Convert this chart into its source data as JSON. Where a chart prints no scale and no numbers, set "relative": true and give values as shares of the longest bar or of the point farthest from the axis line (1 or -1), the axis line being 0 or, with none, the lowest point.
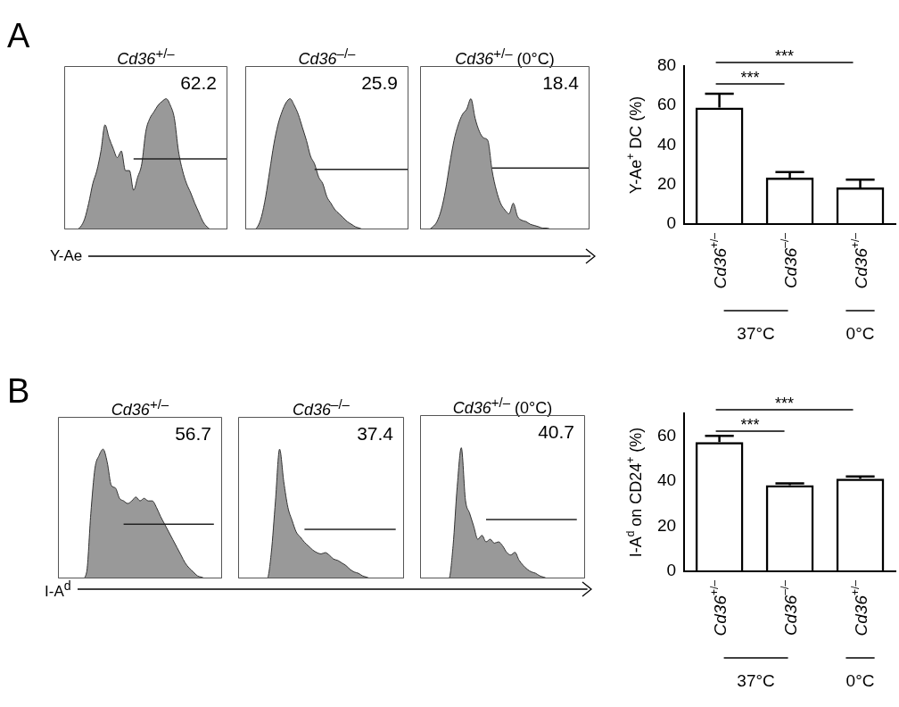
{
  "chart_data": [
    {
      "type": "area",
      "relative": true,
      "title": "Cd36$^{+/–}$",
      "xlabel": "Y-Ae",
      "annotations": [
        "62.2",
        "A"
      ],
      "categories": [
        null,
        null,
        null,
        null,
        null,
        null,
        null,
        null,
        null,
        null,
        null,
        null,
        null,
        null,
        null,
        null,
        null,
        null,
        null,
        null,
        null,
        null,
        null,
        null,
        null,
        null,
        null,
        null,
        null,
        null,
        null,
        null,
        null,
        null,
        null,
        null,
        null,
        null,
        null,
        null,
        null
      ],
      "series": [
        {
          "color": "#999999",
          "values": [
            0,
            0,
            0,
            0,
            0.02,
            0.08,
            0.2,
            0.35,
            0.45,
            0.6,
            0.8,
            0.7,
            0.62,
            0.55,
            0.6,
            0.45,
            0.45,
            0.3,
            0.4,
            0.5,
            0.75,
            0.85,
            0.9,
            0.95,
            0.98,
            1,
            0.95,
            0.85,
            0.6,
            0.45,
            0.35,
            0.28,
            0.2,
            0.13,
            0.06,
            0.02,
            0,
            0,
            0,
            0,
            0
          ]
        },
        {
          "type": "line",
          "color": "#222222",
          "values": [
            null,
            null,
            null,
            null,
            null,
            null,
            null,
            null,
            null,
            null,
            null,
            null,
            null,
            null,
            null,
            null,
            null,
            0.54,
            0.54,
            0.54,
            0.54,
            0.54,
            0.54,
            0.54,
            0.54,
            0.54,
            0.54,
            0.54,
            0.54,
            0.54,
            0.54,
            0.54,
            0.54,
            0.54,
            0.54,
            0.54,
            0.54,
            0.54,
            0.54,
            0.54,
            0.54
          ]
        }
      ]
    },
    {
      "type": "area",
      "relative": true,
      "title": "Cd36$^{–/–}$",
      "annotations": [
        "25.9"
      ],
      "categories": [
        null,
        null,
        null,
        null,
        null,
        null,
        null,
        null,
        null,
        null,
        null,
        null,
        null,
        null,
        null,
        null,
        null,
        null,
        null,
        null,
        null,
        null,
        null,
        null,
        null,
        null,
        null,
        null,
        null,
        null,
        null,
        null,
        null,
        null,
        null,
        null,
        null,
        null,
        null,
        null,
        null
      ],
      "series": [
        {
          "color": "#999999",
          "values": [
            0,
            0,
            0,
            0.02,
            0.1,
            0.25,
            0.45,
            0.65,
            0.8,
            0.9,
            0.97,
            1,
            0.95,
            0.88,
            0.78,
            0.68,
            0.56,
            0.5,
            0.4,
            0.35,
            0.25,
            0.2,
            0.15,
            0.12,
            0.09,
            0.06,
            0.04,
            0.02,
            0.01,
            0,
            0,
            0,
            0,
            0,
            0,
            0,
            0,
            0,
            0,
            0,
            0
          ]
        },
        {
          "type": "line",
          "color": "#222222",
          "values": [
            null,
            null,
            null,
            null,
            null,
            null,
            null,
            null,
            null,
            null,
            null,
            null,
            null,
            null,
            null,
            null,
            null,
            0.46,
            0.46,
            0.46,
            0.46,
            0.46,
            0.46,
            0.46,
            0.46,
            0.46,
            0.46,
            0.46,
            0.46,
            0.46,
            0.46,
            0.46,
            0.46,
            0.46,
            0.46,
            0.46,
            0.46,
            0.46,
            0.46,
            0.46,
            0.46
          ]
        }
      ]
    },
    {
      "type": "area",
      "relative": true,
      "title": "Cd36$^{+/–}$ (0°C)",
      "annotations": [
        "18.4"
      ],
      "categories": [
        null,
        null,
        null,
        null,
        null,
        null,
        null,
        null,
        null,
        null,
        null,
        null,
        null,
        null,
        null,
        null,
        null,
        null,
        null,
        null,
        null,
        null,
        null,
        null,
        null,
        null,
        null,
        null,
        null,
        null,
        null,
        null,
        null,
        null,
        null,
        null,
        null,
        null,
        null,
        null,
        null
      ],
      "series": [
        {
          "color": "#999999",
          "values": [
            0,
            0,
            0,
            0.02,
            0.06,
            0.15,
            0.3,
            0.5,
            0.68,
            0.8,
            0.88,
            0.92,
            1,
            0.85,
            0.75,
            0.7,
            0.68,
            0.45,
            0.3,
            0.2,
            0.15,
            0.12,
            0.2,
            0.1,
            0.07,
            0.06,
            0.04,
            0.03,
            0.02,
            0.01,
            0.01,
            0,
            0,
            0,
            0,
            0,
            0,
            0,
            0,
            0,
            0
          ]
        },
        {
          "type": "line",
          "color": "#222222",
          "values": [
            null,
            null,
            null,
            null,
            null,
            null,
            null,
            null,
            null,
            null,
            null,
            null,
            null,
            null,
            null,
            null,
            null,
            0.47,
            0.47,
            0.47,
            0.47,
            0.47,
            0.47,
            0.47,
            0.47,
            0.47,
            0.47,
            0.47,
            0.47,
            0.47,
            0.47,
            0.47,
            0.47,
            0.47,
            0.47,
            0.47,
            0.47,
            0.47,
            0.47,
            0.47,
            0.47
          ]
        }
      ]
    },
    {
      "type": "bar",
      "ylabel": "Y-Ae$^{+}$ DC (%)",
      "categories": [
        "Cd36$^{+/–}$",
        "Cd36$^{–/–}$",
        "Cd36$^{+/–}$"
      ],
      "values": [
        59,
        23.5,
        18.5
      ],
      "errors": [
        7,
        2.8,
        4
      ],
      "color": "#000000",
      "ylim": [
        0,
        80
      ],
      "yticks": [
        0,
        20,
        40,
        60,
        80
      ],
      "annotations": [
        "***",
        "***",
        "37°C",
        "0°C"
      ]
    },
    {
      "type": "area",
      "relative": true,
      "title": "Cd36$^{+/–}$",
      "xlabel": "I-A$^{d}$",
      "annotations": [
        "56.7",
        "B"
      ],
      "categories": [
        null,
        null,
        null,
        null,
        null,
        null,
        null,
        null,
        null,
        null,
        null,
        null,
        null,
        null,
        null,
        null,
        null,
        null,
        null,
        null,
        null,
        null,
        null,
        null,
        null,
        null,
        null,
        null,
        null,
        null,
        null,
        null,
        null,
        null,
        null,
        null,
        null,
        null,
        null,
        null,
        null
      ],
      "series": [
        {
          "color": "#999999",
          "values": [
            0,
            0,
            0,
            0,
            0,
            0,
            0,
            0.05,
            0.5,
            0.85,
            0.95,
            1,
            0.9,
            0.72,
            0.7,
            0.62,
            0.6,
            0.58,
            0.6,
            0.63,
            0.6,
            0.62,
            0.6,
            0.6,
            0.55,
            0.48,
            0.42,
            0.36,
            0.3,
            0.24,
            0.18,
            0.12,
            0.08,
            0.05,
            0.02,
            0.01,
            0,
            0,
            0,
            0,
            0
          ]
        },
        {
          "type": "line",
          "color": "#222222",
          "values": [
            null,
            null,
            null,
            null,
            null,
            null,
            null,
            null,
            null,
            null,
            null,
            null,
            null,
            null,
            null,
            null,
            0.42,
            0.42,
            0.42,
            0.42,
            0.42,
            0.42,
            0.42,
            0.42,
            0.42,
            0.42,
            0.42,
            0.42,
            0.42,
            0.42,
            0.42,
            0.42,
            0.42,
            0.42,
            0.42,
            0.42,
            0.42,
            0.42,
            0.42,
            null,
            null
          ]
        }
      ]
    },
    {
      "type": "area",
      "relative": true,
      "title": "Cd36$^{–/–}$",
      "annotations": [
        "37.4"
      ],
      "categories": [
        null,
        null,
        null,
        null,
        null,
        null,
        null,
        null,
        null,
        null,
        null,
        null,
        null,
        null,
        null,
        null,
        null,
        null,
        null,
        null,
        null,
        null,
        null,
        null,
        null,
        null,
        null,
        null,
        null,
        null,
        null,
        null,
        null,
        null,
        null,
        null,
        null,
        null,
        null,
        null,
        null
      ],
      "series": [
        {
          "color": "#999999",
          "values": [
            0,
            0,
            0,
            0,
            0,
            0,
            0,
            0,
            0.2,
            0.6,
            1,
            0.75,
            0.55,
            0.45,
            0.36,
            0.32,
            0.28,
            0.25,
            0.22,
            0.2,
            0.19,
            0.2,
            0.18,
            0.15,
            0.14,
            0.12,
            0.1,
            0.07,
            0.05,
            0.04,
            0.02,
            0.01,
            0,
            0,
            0,
            0,
            0,
            0,
            0,
            0,
            0
          ]
        },
        {
          "type": "line",
          "color": "#222222",
          "values": [
            null,
            null,
            null,
            null,
            null,
            null,
            null,
            null,
            null,
            null,
            null,
            null,
            null,
            null,
            null,
            null,
            0.38,
            0.38,
            0.38,
            0.38,
            0.38,
            0.38,
            0.38,
            0.38,
            0.38,
            0.38,
            0.38,
            0.38,
            0.38,
            0.38,
            0.38,
            0.38,
            0.38,
            0.38,
            0.38,
            0.38,
            0.38,
            0.38,
            0.38,
            null,
            null
          ]
        }
      ]
    },
    {
      "type": "area",
      "relative": true,
      "title": "Cd36$^{+/–}$ (0°C)",
      "annotations": [
        "40.7"
      ],
      "categories": [
        null,
        null,
        null,
        null,
        null,
        null,
        null,
        null,
        null,
        null,
        null,
        null,
        null,
        null,
        null,
        null,
        null,
        null,
        null,
        null,
        null,
        null,
        null,
        null,
        null,
        null,
        null,
        null,
        null,
        null,
        null,
        null,
        null,
        null,
        null,
        null,
        null,
        null,
        null,
        null,
        null
      ],
      "series": [
        {
          "color": "#999999",
          "values": [
            0,
            0,
            0,
            0,
            0,
            0,
            0,
            0,
            0.25,
            0.7,
            1,
            0.6,
            0.5,
            0.4,
            0.3,
            0.33,
            0.28,
            0.3,
            0.27,
            0.28,
            0.25,
            0.2,
            0.18,
            0.2,
            0.14,
            0.1,
            0.07,
            0.05,
            0.04,
            0.02,
            0.01,
            0,
            0,
            0,
            0,
            0,
            0,
            0,
            0,
            0,
            0
          ]
        },
        {
          "type": "line",
          "color": "#222222",
          "values": [
            null,
            null,
            null,
            null,
            null,
            null,
            null,
            null,
            null,
            null,
            null,
            null,
            null,
            null,
            null,
            null,
            0.45,
            0.45,
            0.45,
            0.45,
            0.45,
            0.45,
            0.45,
            0.45,
            0.45,
            0.45,
            0.45,
            0.45,
            0.45,
            0.45,
            0.45,
            0.45,
            0.45,
            0.45,
            0.45,
            0.45,
            0.45,
            0.45,
            0.45,
            null,
            null
          ]
        }
      ]
    },
    {
      "type": "bar",
      "ylabel": "I-A$^{d}$ on CD24$^{+}$ (%)",
      "categories": [
        "Cd36$^{+/–}$",
        "Cd36$^{–/–}$",
        "Cd36$^{+/–}$"
      ],
      "values": [
        57.2,
        38.2,
        41
      ],
      "errors": [
        2.8,
        0.8,
        1
      ],
      "color": "#000000",
      "ylim": [
        0,
        70
      ],
      "yticks": [
        0,
        20,
        40,
        60
      ],
      "annotations": [
        "***",
        "***",
        "37°C",
        "0°C"
      ]
    }
  ]
}
